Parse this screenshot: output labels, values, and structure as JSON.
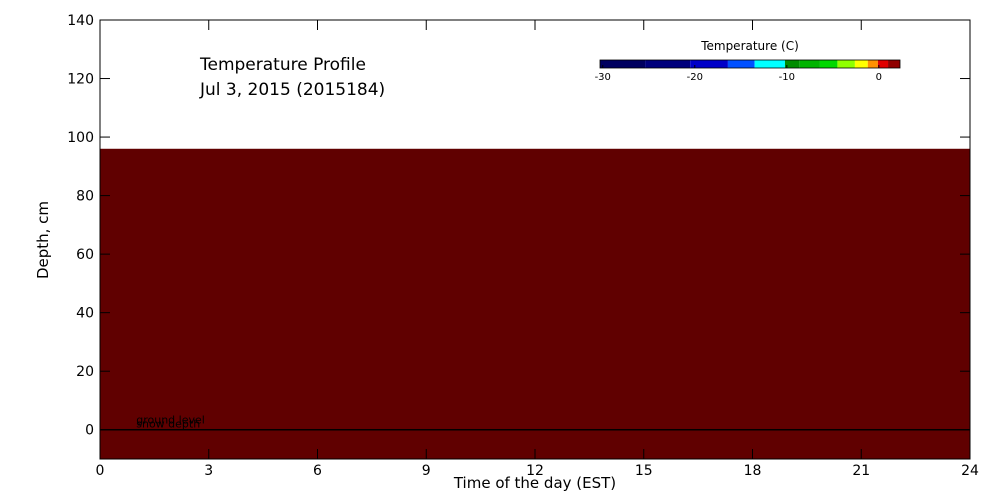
{
  "chart_data": {
    "type": "heatmap",
    "title": "Temperature Profile",
    "subtitle": "Jul  3, 2015 (2015184)",
    "x_label": "Time of the day (EST)",
    "y_label": "Depth, cm",
    "xlim": [
      0,
      24
    ],
    "xticks": [
      0,
      3,
      6,
      9,
      12,
      15,
      18,
      21,
      24
    ],
    "ylim": [
      -10,
      140
    ],
    "yticks": [
      0,
      20,
      40,
      60,
      80,
      100,
      120,
      140
    ],
    "field": {
      "x": [
        0,
        24
      ],
      "y": [
        -10,
        96
      ],
      "color": "#600000"
    },
    "ground_level": {
      "value": 0,
      "label": "ground level",
      "snow_label": "snow depth",
      "x": 1
    },
    "colorbar": {
      "title": "Temperature (C)",
      "bounds": [
        -30.3,
        -25.4,
        -20.5,
        -16.4,
        -13.5,
        -10.2,
        -8.6,
        -6.4,
        -4.5,
        -2.6,
        -1.2,
        -0.1,
        1.0,
        2.3
      ],
      "colors": [
        "#000060",
        "#00007c",
        "#0000c8",
        "#0050ff",
        "#00ffff",
        "#008c00",
        "#00b400",
        "#00d800",
        "#90ff00",
        "#ffff00",
        "#ff9000",
        "#e00000",
        "#900000"
      ],
      "ticks": [
        -30,
        -20,
        -10,
        0
      ]
    }
  }
}
